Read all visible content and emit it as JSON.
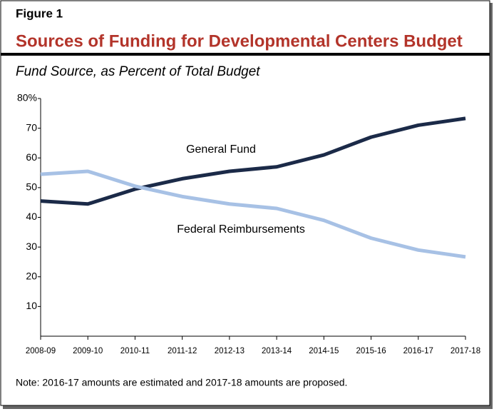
{
  "chart_data": {
    "type": "line",
    "figure_label": "Figure 1",
    "title": "Sources of Funding for Developmental Centers Budget",
    "subtitle": "Fund Source, as Percent of Total Budget",
    "categories": [
      "2008-09",
      "2009-10",
      "2010-11",
      "2011-12",
      "2012-13",
      "2013-14",
      "2014-15",
      "2015-16",
      "2016-17",
      "2017-18"
    ],
    "series": [
      {
        "name": "General Fund",
        "color": "#1b2a48",
        "values": [
          45.5,
          44.5,
          49.5,
          53,
          55.5,
          57,
          61,
          67,
          71,
          73.3
        ]
      },
      {
        "name": "Federal Reimbursements",
        "color": "#a7c1e5",
        "values": [
          54.5,
          55.5,
          50.5,
          47,
          44.5,
          43,
          39,
          33,
          29,
          26.7
        ]
      }
    ],
    "ylim": [
      0,
      80
    ],
    "yticks": [
      10,
      20,
      30,
      40,
      50,
      60,
      70,
      {
        "value": 80,
        "label": "80%"
      }
    ],
    "note": "Note: 2016-17 amounts are estimated and 2017-18 amounts are proposed."
  }
}
